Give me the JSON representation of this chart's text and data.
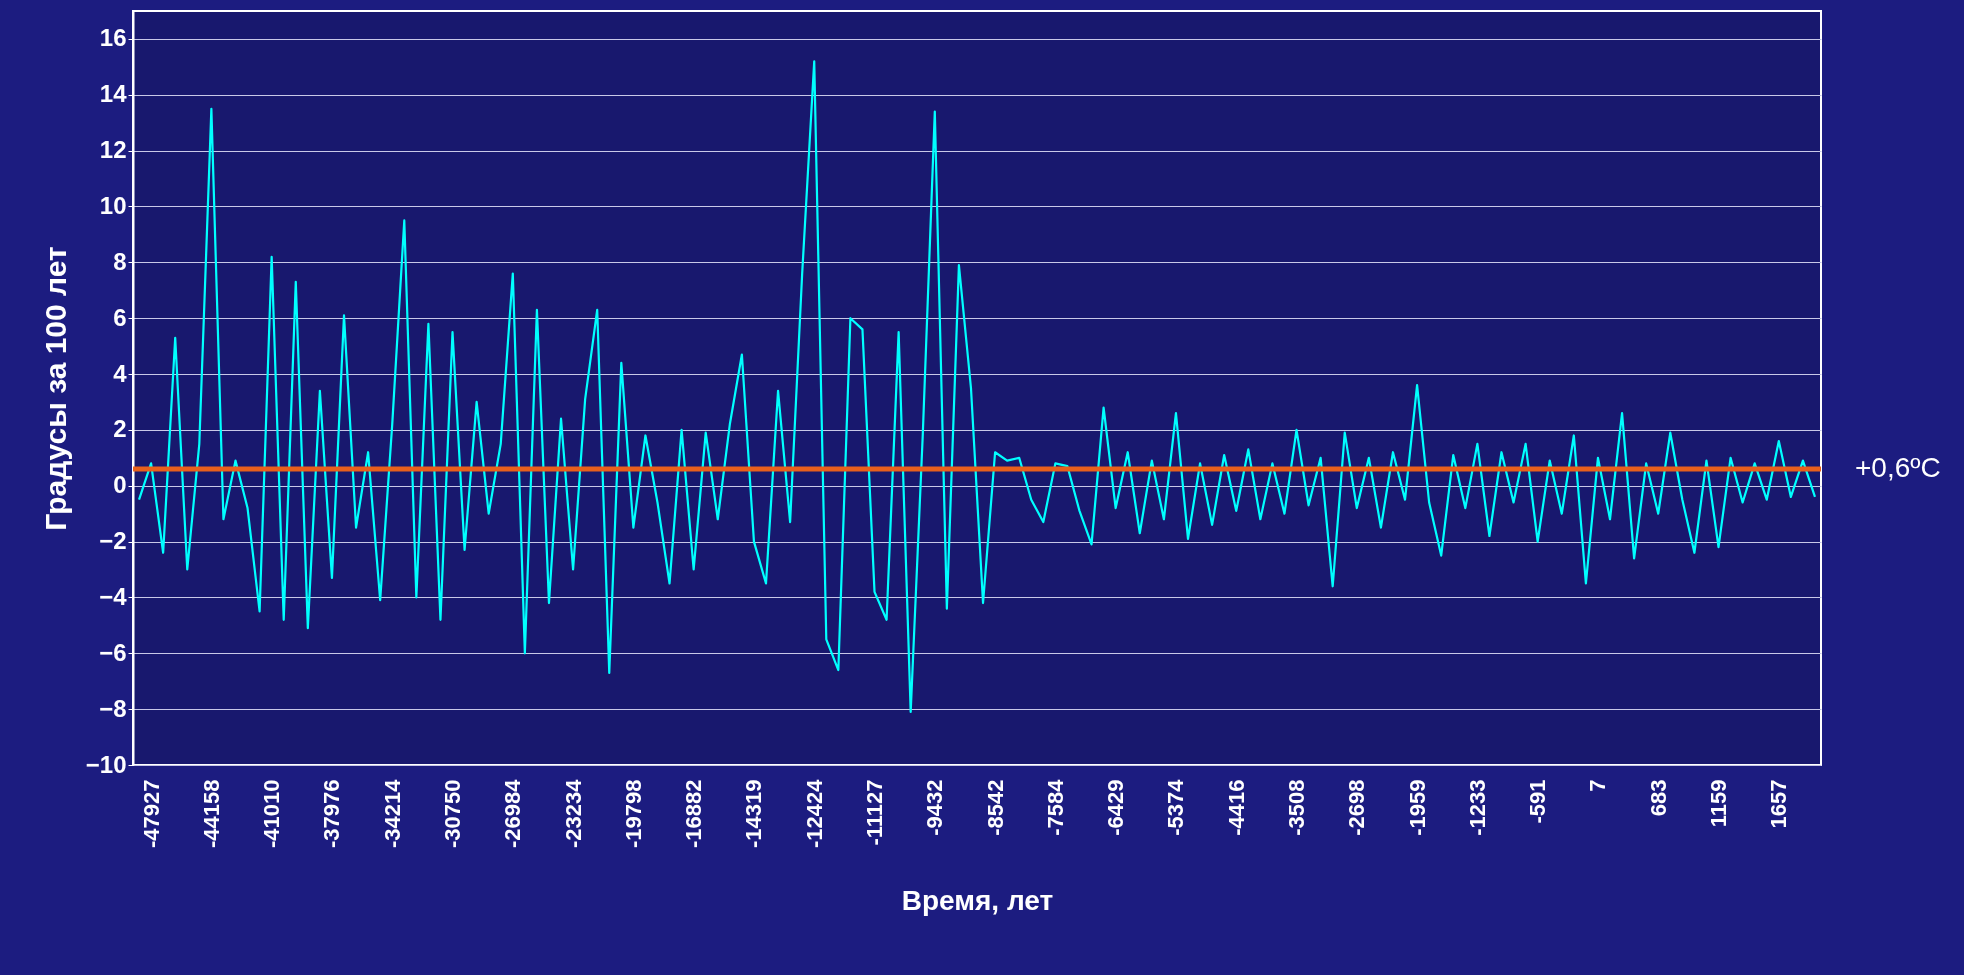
{
  "chart_data": {
    "type": "line",
    "xlabel": "Время, лет",
    "ylabel": "Градусы за 100 лет",
    "categories": [
      null,
      "-47927",
      null,
      null,
      null,
      null,
      "-44158",
      null,
      null,
      null,
      null,
      "-41010",
      null,
      null,
      null,
      null,
      "-37976",
      null,
      null,
      null,
      null,
      "-34214",
      null,
      null,
      null,
      null,
      "-30750",
      null,
      null,
      null,
      null,
      "-26984",
      null,
      null,
      null,
      null,
      "-23234",
      null,
      null,
      null,
      null,
      "-19798",
      null,
      null,
      null,
      null,
      "-16882",
      null,
      null,
      null,
      null,
      "-14319",
      null,
      null,
      null,
      null,
      "-12424",
      null,
      null,
      null,
      null,
      "-11127",
      null,
      null,
      null,
      null,
      "-9432",
      null,
      null,
      null,
      null,
      "-8542",
      null,
      null,
      null,
      null,
      "-7584",
      null,
      null,
      null,
      null,
      "-6429",
      null,
      null,
      null,
      null,
      "-5374",
      null,
      null,
      null,
      null,
      "-4416",
      null,
      null,
      null,
      null,
      "-3508",
      null,
      null,
      null,
      null,
      "-2698",
      null,
      null,
      null,
      null,
      "-1959",
      null,
      null,
      null,
      null,
      "-1233",
      null,
      null,
      null,
      null,
      "-591",
      null,
      null,
      null,
      null,
      "7",
      null,
      null,
      null,
      null,
      "683",
      null,
      null,
      null,
      null,
      "1159",
      null,
      null,
      null,
      null,
      "1657",
      null,
      null,
      null
    ],
    "series": [
      {
        "color": "#00ffff",
        "values": [
          -0.5,
          0.8,
          -2.4,
          5.3,
          -3.0,
          1.5,
          13.5,
          -1.2,
          0.9,
          -0.8,
          -4.5,
          8.2,
          -4.8,
          7.3,
          -5.1,
          3.4,
          -3.3,
          6.1,
          -1.5,
          1.2,
          -4.1,
          2.2,
          9.5,
          -4.0,
          5.8,
          -4.8,
          5.5,
          -2.3,
          3.0,
          -1.0,
          1.5,
          7.6,
          -6.0,
          6.3,
          -4.2,
          2.4,
          -3.0,
          3.1,
          6.3,
          -6.7,
          4.4,
          -1.5,
          1.8,
          -0.6,
          -3.5,
          2.0,
          -3.0,
          1.9,
          -1.2,
          2.2,
          4.7,
          -2.0,
          -3.5,
          3.4,
          -1.3,
          7.6,
          15.2,
          -5.5,
          -6.6,
          6.0,
          5.6,
          -3.8,
          -4.8,
          5.5,
          -8.1,
          1.8,
          13.4,
          -4.4,
          7.9,
          3.5,
          -4.2,
          1.2,
          0.9,
          1.0,
          -0.5,
          -1.3,
          0.8,
          0.7,
          -0.9,
          -2.1,
          2.8,
          -0.8,
          1.2,
          -1.7,
          0.9,
          -1.2,
          2.6,
          -1.9,
          0.8,
          -1.4,
          1.1,
          -0.9,
          1.3,
          -1.2,
          0.8,
          -1.0,
          2.0,
          -0.7,
          1.0,
          -3.6,
          1.9,
          -0.8,
          1.0,
          -1.5,
          1.2,
          -0.5,
          3.6,
          -0.6,
          -2.5,
          1.1,
          -0.8,
          1.5,
          -1.8,
          1.2,
          -0.6,
          1.5,
          -2.0,
          0.9,
          -1.0,
          1.8,
          -3.5,
          1.0,
          -1.2,
          2.6,
          -2.6,
          0.8,
          -1.0,
          1.9,
          -0.5,
          -2.4,
          0.9,
          -2.2,
          1.0,
          -0.6,
          0.8,
          -0.5,
          1.6,
          -0.4,
          0.9,
          -0.4
        ]
      }
    ],
    "ylim": [
      -10,
      17
    ],
    "yticks": [
      -10,
      -8,
      -6,
      -4,
      -2,
      0,
      2,
      4,
      6,
      8,
      10,
      12,
      14,
      16
    ],
    "grid": "y",
    "ref_lines": [
      {
        "axis": "y",
        "value": 0.6,
        "label": "+0,6ºC",
        "color": "#e8601c"
      }
    ]
  }
}
